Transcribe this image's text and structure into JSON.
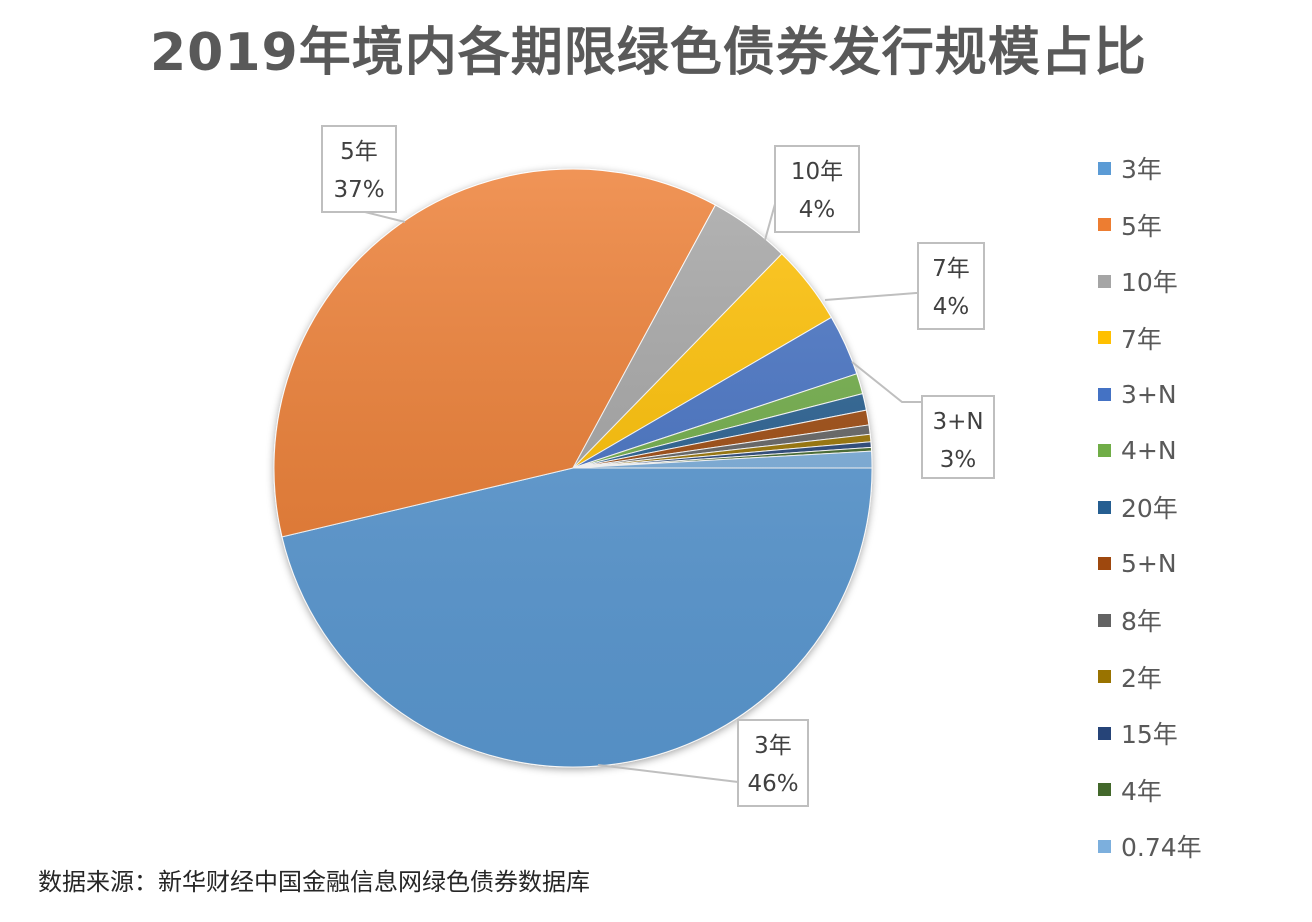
{
  "chart_data": {
    "type": "pie",
    "title": "2019年境内各期限绿色债券发行规模占比",
    "source_note": "数据来源：新华财经中国金融信息网绿色债券数据库",
    "categories": [
      "3年",
      "5年",
      "10年",
      "7年",
      "3+N",
      "4+N",
      "20年",
      "5+N",
      "8年",
      "2年",
      "15年",
      "4年",
      "0.74年"
    ],
    "values": [
      46.3,
      36.6,
      4.4,
      4.3,
      3.3,
      1.1,
      0.9,
      0.8,
      0.5,
      0.4,
      0.3,
      0.2,
      0.9
    ],
    "colors": [
      "#5b9bd5",
      "#ed7d31",
      "#a5a5a5",
      "#ffc000",
      "#4472c4",
      "#70ad47",
      "#255e91",
      "#9e480e",
      "#636363",
      "#997300",
      "#264478",
      "#43682b",
      "#7cafdd"
    ],
    "data_labels": [
      {
        "category": "5年",
        "line1": "5年",
        "line2": "37%"
      },
      {
        "category": "10年",
        "line1": "10年",
        "line2": "4%"
      },
      {
        "category": "7年",
        "line1": "7年",
        "line2": "4%"
      },
      {
        "category": "3+N",
        "line1": "3+N",
        "line2": "3%"
      },
      {
        "category": "3年",
        "line1": "3年",
        "line2": "46%"
      }
    ],
    "legend_position": "right"
  }
}
